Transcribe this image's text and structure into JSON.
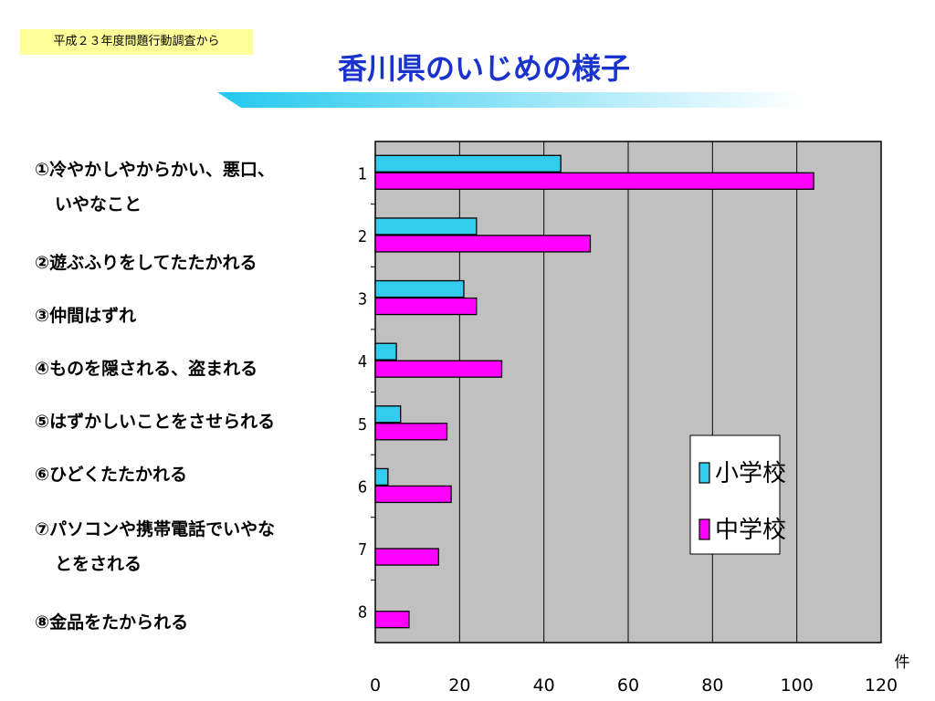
{
  "source_tag": "平成２３年度問題行動調査から",
  "title": "香川県のいじめの様子",
  "items": [
    {
      "line1": "①冷やかしやからかい、悪口、",
      "line2": "いやなこと"
    },
    {
      "line1": "②遊ぶふりをしてたたかれる",
      "line2": ""
    },
    {
      "line1": "③仲間はずれ",
      "line2": ""
    },
    {
      "line1": "④ものを隠される、盗まれる",
      "line2": ""
    },
    {
      "line1": "⑤はずかしいことをさせられる",
      "line2": ""
    },
    {
      "line1": "⑥ひどくたたかれる",
      "line2": ""
    },
    {
      "line1": "⑦パソコンや携帯電話でいやな",
      "line2": "とをされる"
    },
    {
      "line1": "⑧金品をたかられる",
      "line2": ""
    }
  ],
  "colors": {
    "elementary": "#33ccee",
    "junior_high": "#ff00ff",
    "plot_background": "#c0c0c0",
    "title": "#1a33cc",
    "source_tag_background": "#ffff99",
    "underline": "#33ccee"
  },
  "chart_data": {
    "type": "bar",
    "orientation": "horizontal",
    "categories": [
      "1",
      "2",
      "3",
      "4",
      "5",
      "6",
      "7",
      "8"
    ],
    "series": [
      {
        "name": "小学校",
        "values": [
          44,
          24,
          21,
          5,
          6,
          3,
          0,
          0
        ]
      },
      {
        "name": "中学校",
        "values": [
          104,
          51,
          24,
          30,
          17,
          18,
          15,
          8
        ]
      }
    ],
    "xlim": [
      0,
      120
    ],
    "xticks": [
      "0",
      "20",
      "40",
      "60",
      "80",
      "100",
      "120"
    ],
    "unit_label": "件",
    "grid": true,
    "legend_position": "right"
  }
}
